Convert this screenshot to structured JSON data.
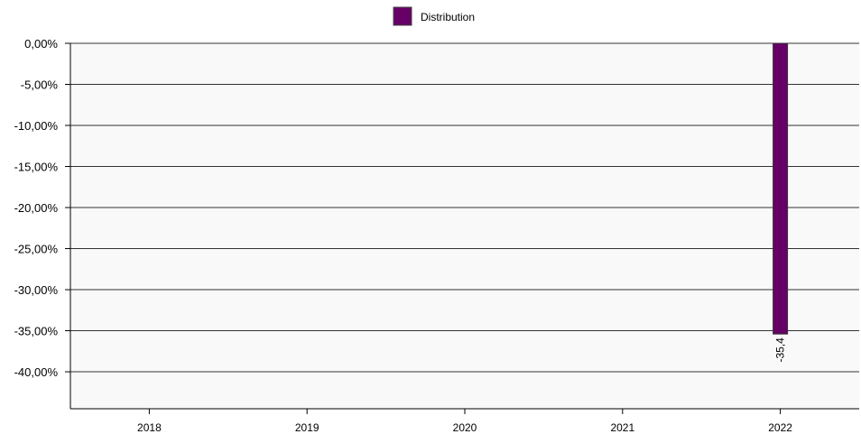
{
  "chart_data": {
    "type": "bar",
    "categories": [
      "2018",
      "2019",
      "2020",
      "2021",
      "2022"
    ],
    "series": [
      {
        "name": "Distribution",
        "color": "#660066",
        "values": [
          null,
          null,
          null,
          null,
          -35.4
        ],
        "data_labels": [
          "",
          "",
          "",
          "",
          "-35,4"
        ]
      }
    ],
    "yticks": [
      0,
      -5,
      -10,
      -15,
      -20,
      -25,
      -30,
      -35,
      -40
    ],
    "ytick_labels": [
      "0,00%",
      "-5,00%",
      "-10,00%",
      "-15,00%",
      "-20,00%",
      "-25,00%",
      "-30,00%",
      "-35,00%",
      "-40,00%"
    ],
    "ylim": [
      -44.5,
      0
    ],
    "grid": true,
    "legend_position": "top-center",
    "plot_background": "#f9f9f9",
    "grid_color": "#333333"
  }
}
